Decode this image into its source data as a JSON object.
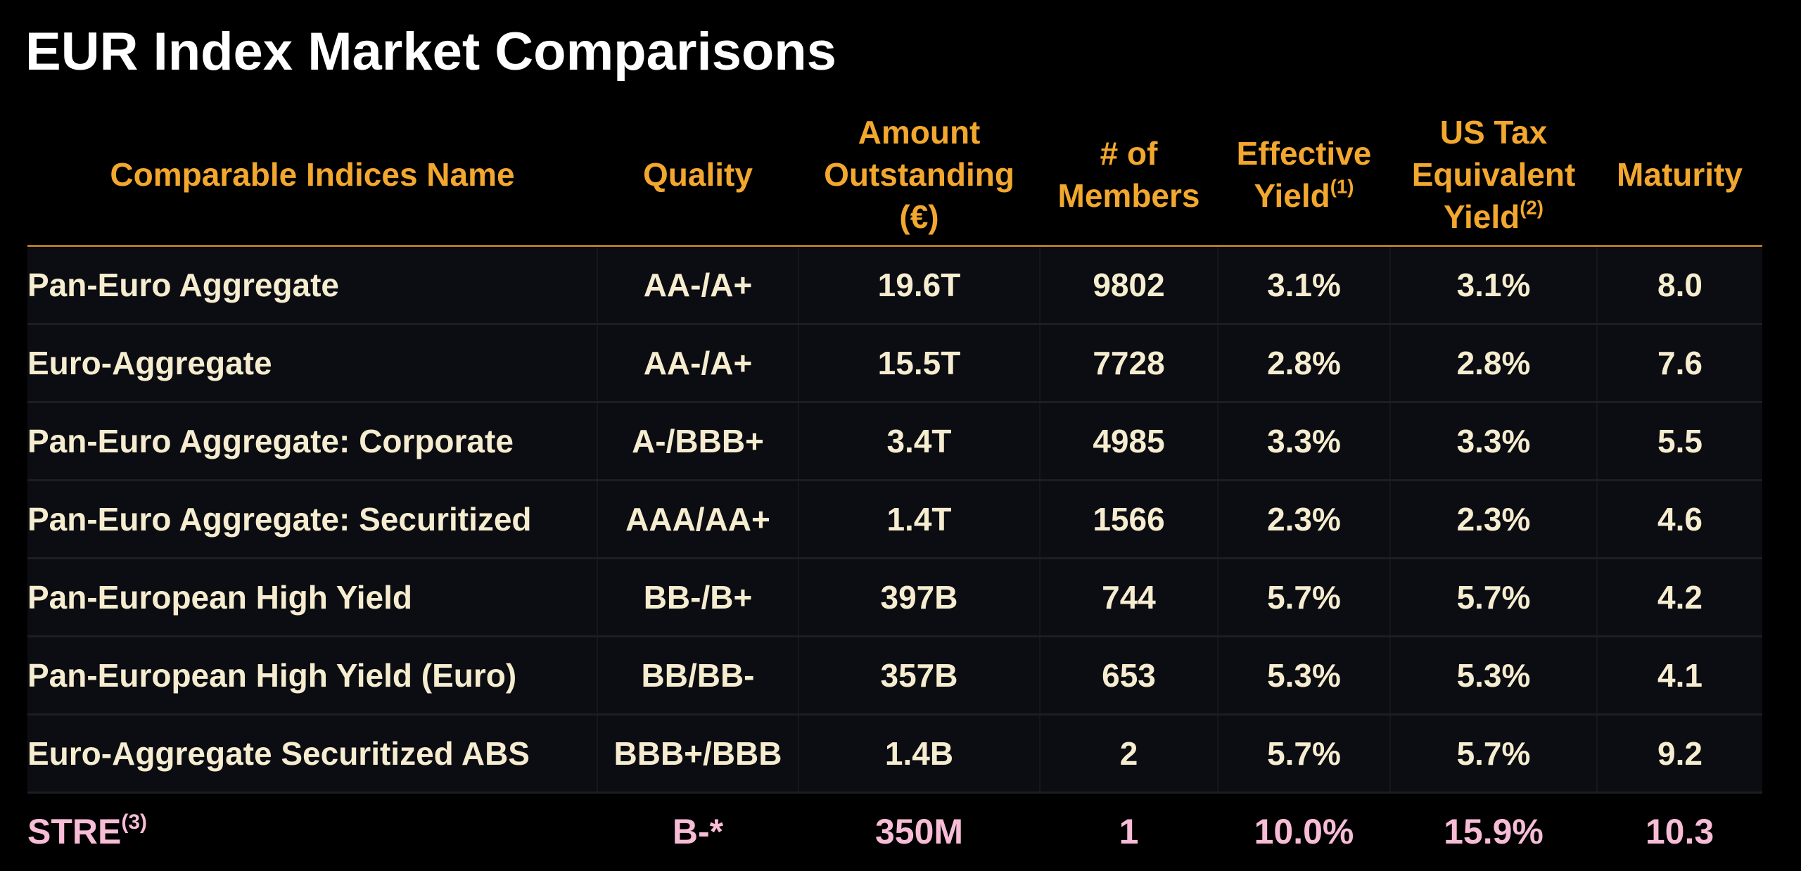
{
  "header": {
    "title": "EUR Index Market Comparisons"
  },
  "table": {
    "columns": [
      {
        "label": "Comparable Indices Name"
      },
      {
        "label": "Quality"
      },
      {
        "label": "Amount Outstanding (€)"
      },
      {
        "label": "# of Members"
      },
      {
        "label": "Effective Yield",
        "note": "(1)"
      },
      {
        "label": "US Tax Equivalent Yield",
        "note": "(2)"
      },
      {
        "label": "Maturity"
      }
    ],
    "rows": [
      {
        "name": "Pan-Euro Aggregate",
        "values": [
          "AA-/A+",
          "19.6T",
          "9802",
          "3.1%",
          "3.1%",
          "8.0"
        ]
      },
      {
        "name": "Euro-Aggregate",
        "values": [
          "AA-/A+",
          "15.5T",
          "7728",
          "2.8%",
          "2.8%",
          "7.6"
        ]
      },
      {
        "name": "Pan-Euro Aggregate: Corporate",
        "values": [
          "A-/BBB+",
          "3.4T",
          "4985",
          "3.3%",
          "3.3%",
          "5.5"
        ]
      },
      {
        "name": "Pan-Euro Aggregate: Securitized",
        "values": [
          "AAA/AA+",
          "1.4T",
          "1566",
          "2.3%",
          "2.3%",
          "4.6"
        ]
      },
      {
        "name": "Pan-European High Yield",
        "values": [
          "BB-/B+",
          "397B",
          "744",
          "5.7%",
          "5.7%",
          "4.2"
        ]
      },
      {
        "name": "Pan-European High Yield (Euro)",
        "values": [
          "BB/BB-",
          "357B",
          "653",
          "5.3%",
          "5.3%",
          "4.1"
        ]
      },
      {
        "name": "Euro-Aggregate Securitized ABS",
        "values": [
          "BBB+/BBB",
          "1.4B",
          "2",
          "5.7%",
          "5.7%",
          "9.2"
        ]
      },
      {
        "name": "STRE",
        "note": "(3)",
        "values": [
          "B-*",
          "350M",
          "1",
          "10.0%",
          "15.9%",
          "10.3"
        ]
      }
    ]
  }
}
